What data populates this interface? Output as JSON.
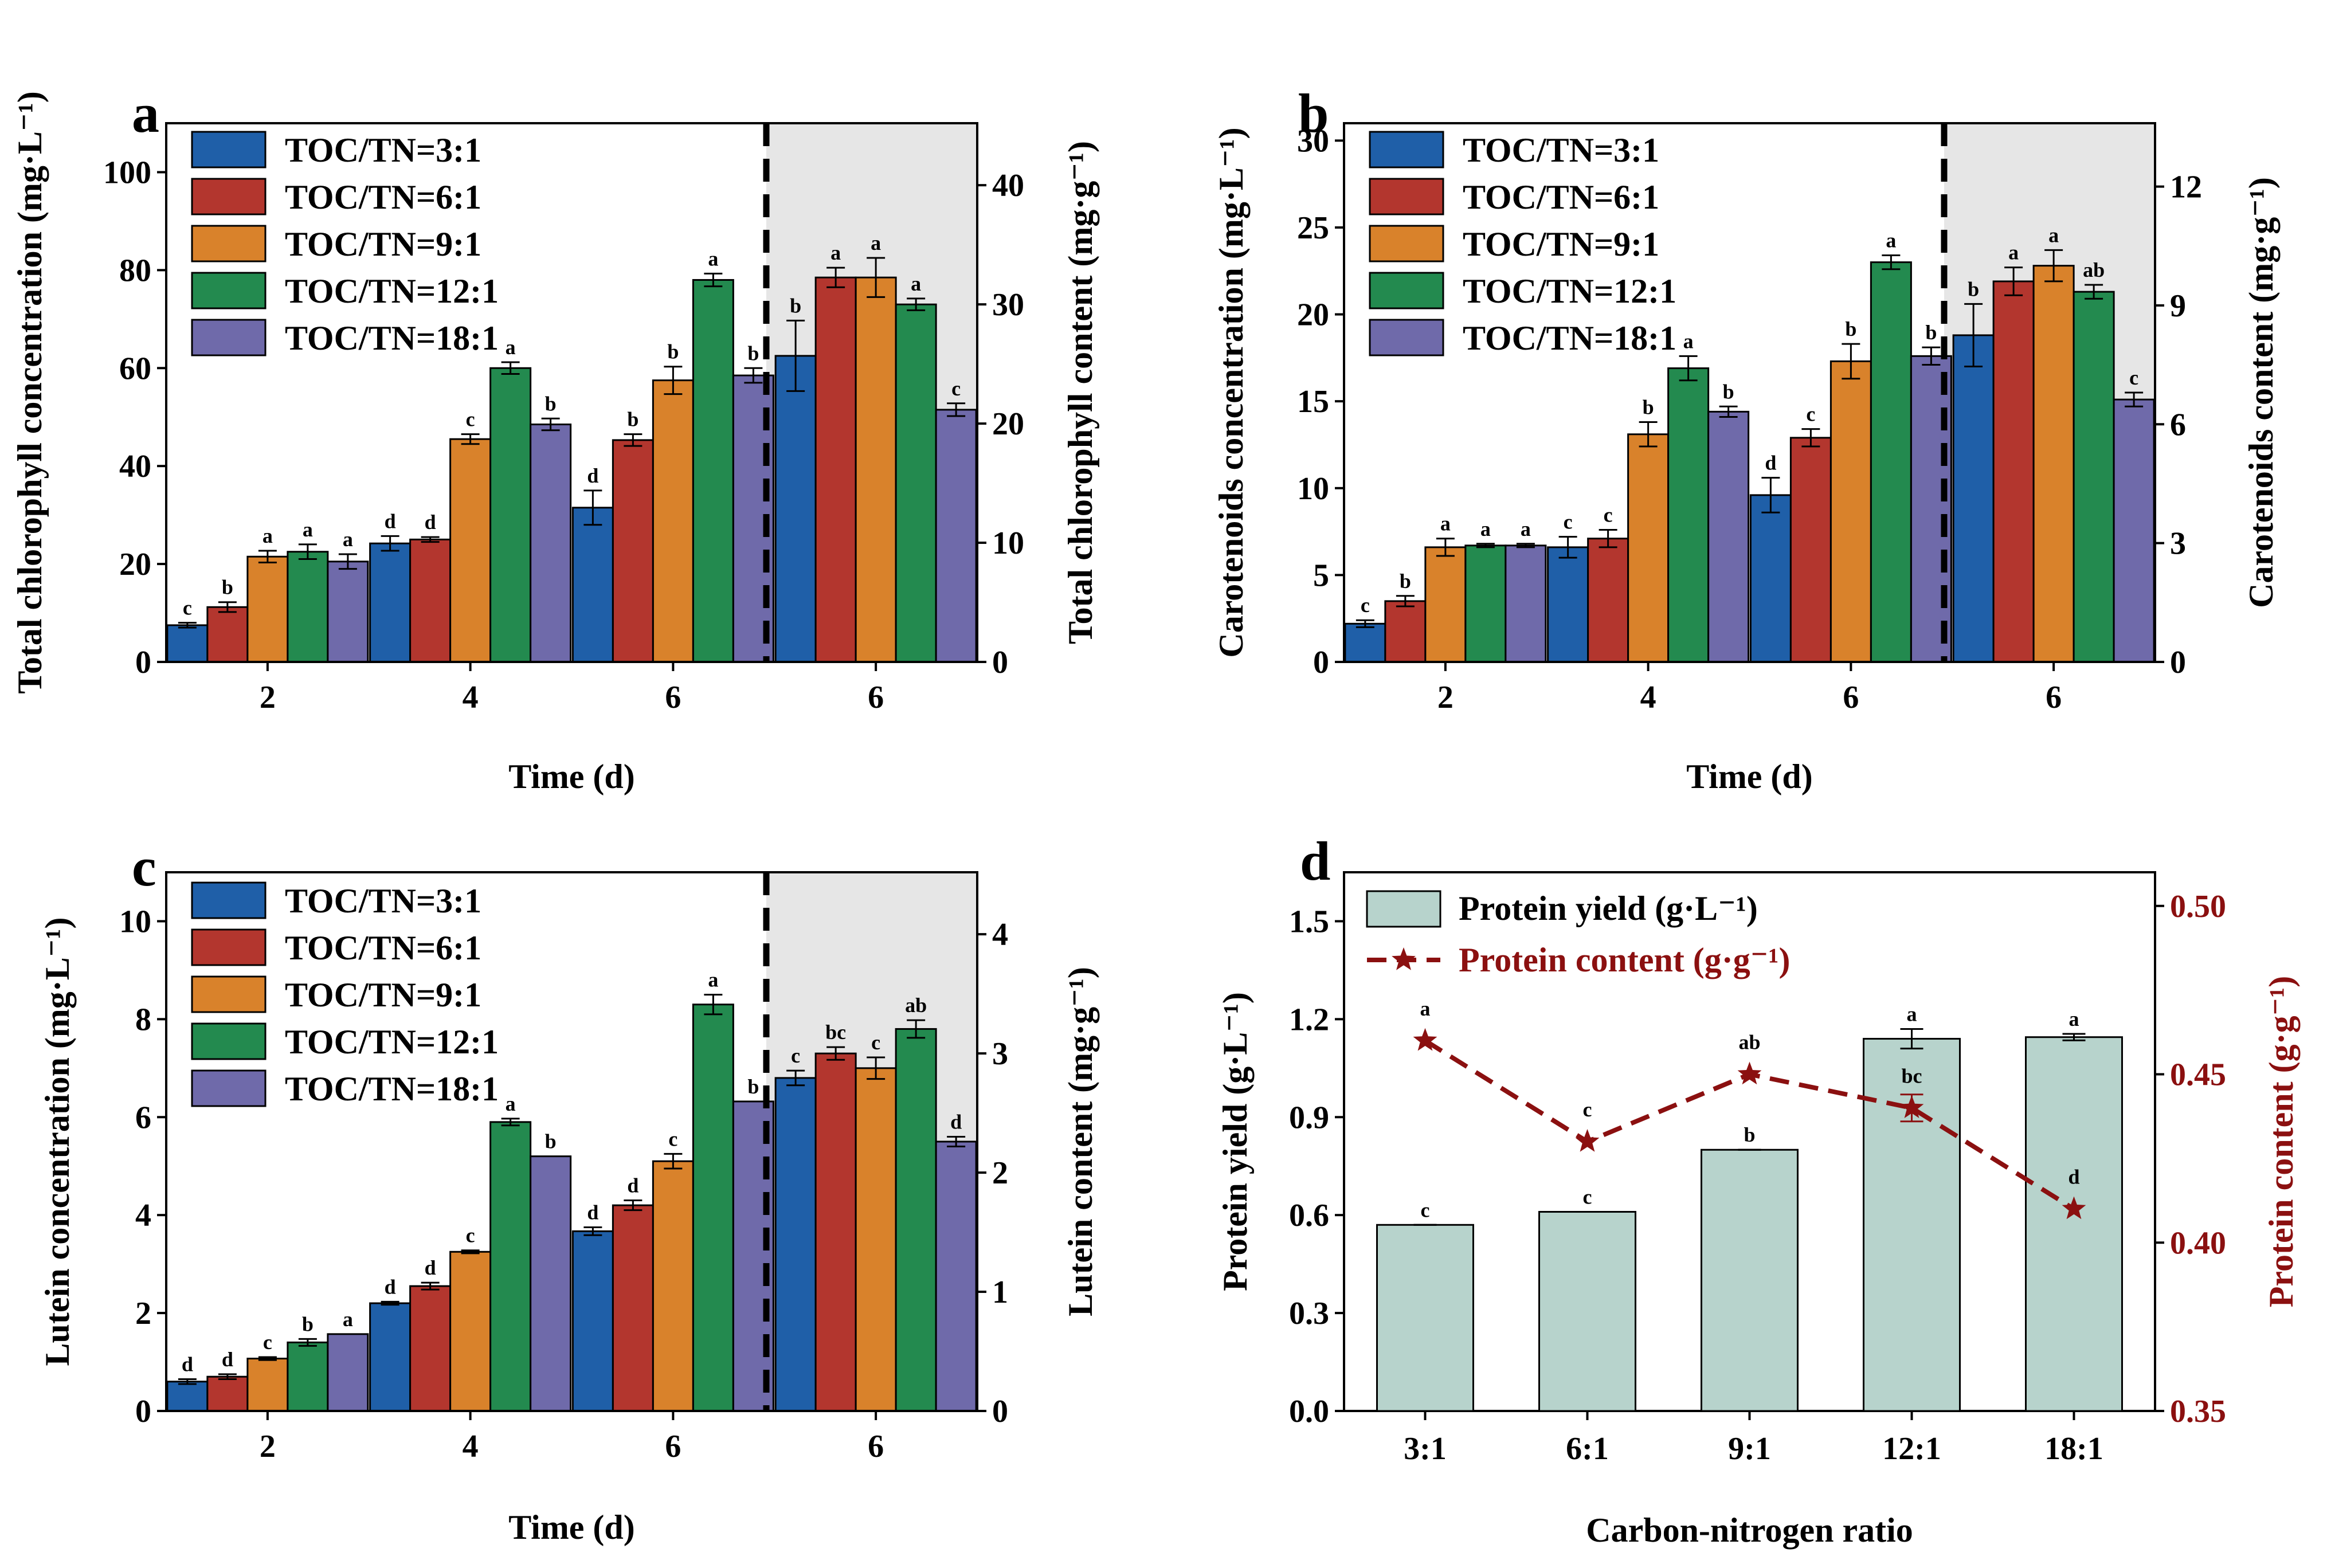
{
  "colors": {
    "series": [
      "#1f5fa8",
      "#b3362e",
      "#d9822b",
      "#238a4f",
      "#6f6aaa"
    ],
    "shade": "#e6e6e6",
    "protein_bar": "#b7d3cc",
    "protein_line": "#8b1010"
  },
  "chart_data": [
    {
      "type": "bar",
      "panel": "a",
      "categories": [
        "2",
        "4",
        "6",
        "6"
      ],
      "shaded_group": 3,
      "xlabel": "Time (d)",
      "ylabel": "Total chlorophyll concentration (mg·L⁻¹)",
      "ylabel_right": "Total chlorophyll content (mg·g⁻¹)",
      "ylim": [
        0,
        110
      ],
      "yticks": [
        "0",
        "20",
        "40",
        "60",
        "80",
        "100"
      ],
      "ylim_right": [
        0,
        45.2
      ],
      "yticks_right": [
        "0",
        "10",
        "20",
        "30",
        "40"
      ],
      "series": [
        {
          "name": "TOC/TN=3:1",
          "values": [
            7.5,
            24.2,
            31.5,
            62.5
          ],
          "errors": [
            0.5,
            1.5,
            3.5,
            7.2
          ],
          "letters": [
            "c",
            "d",
            "d",
            "b"
          ]
        },
        {
          "name": "TOC/TN=6:1",
          "values": [
            11.2,
            25.0,
            45.3,
            78.5
          ],
          "errors": [
            1.0,
            0.5,
            1.2,
            2.0
          ],
          "letters": [
            "b",
            "d",
            "b",
            "a"
          ]
        },
        {
          "name": "TOC/TN=9:1",
          "values": [
            21.5,
            45.5,
            57.5,
            78.5
          ],
          "errors": [
            1.2,
            1.0,
            2.8,
            4.0
          ],
          "letters": [
            "a",
            "c",
            "b",
            "a"
          ]
        },
        {
          "name": "TOC/TN=12:1",
          "values": [
            22.5,
            60.0,
            78.0,
            73.0
          ],
          "errors": [
            1.5,
            1.2,
            1.3,
            1.2
          ],
          "letters": [
            "a",
            "a",
            "a",
            "a"
          ]
        },
        {
          "name": "TOC/TN=18:1",
          "values": [
            20.5,
            48.5,
            58.5,
            51.5
          ],
          "errors": [
            1.5,
            1.2,
            1.5,
            1.3
          ],
          "letters": [
            "a",
            "b",
            "b",
            "c"
          ]
        }
      ]
    },
    {
      "type": "bar",
      "panel": "b",
      "categories": [
        "2",
        "4",
        "6",
        "6"
      ],
      "shaded_group": 3,
      "xlabel": "Time (d)",
      "ylabel": "Carotenoids concentration (mg·L⁻¹)",
      "ylabel_right": "Carotenoids content (mg·g⁻¹)",
      "ylim": [
        0,
        31
      ],
      "yticks": [
        "0",
        "5",
        "10",
        "15",
        "20",
        "25",
        "30"
      ],
      "ylim_right": [
        0,
        13.6
      ],
      "yticks_right": [
        "0",
        "3",
        "6",
        "9",
        "12"
      ],
      "series": [
        {
          "name": "TOC/TN=3:1",
          "values": [
            2.2,
            6.6,
            9.6,
            18.8
          ],
          "errors": [
            0.2,
            0.6,
            1.0,
            1.8
          ],
          "letters": [
            "c",
            "c",
            "d",
            "b"
          ]
        },
        {
          "name": "TOC/TN=6:1",
          "values": [
            3.5,
            7.1,
            12.9,
            21.9
          ],
          "errors": [
            0.3,
            0.5,
            0.5,
            0.8
          ],
          "letters": [
            "b",
            "c",
            "c",
            "a"
          ]
        },
        {
          "name": "TOC/TN=9:1",
          "values": [
            6.6,
            13.1,
            17.3,
            22.8
          ],
          "errors": [
            0.5,
            0.7,
            1.0,
            0.9
          ],
          "letters": [
            "a",
            "b",
            "b",
            "a"
          ]
        },
        {
          "name": "TOC/TN=12:1",
          "values": [
            6.7,
            16.9,
            23.0,
            21.3
          ],
          "errors": [
            0.1,
            0.7,
            0.4,
            0.4
          ],
          "letters": [
            "a",
            "a",
            "a",
            "ab"
          ]
        },
        {
          "name": "TOC/TN=18:1",
          "values": [
            6.7,
            14.4,
            17.6,
            15.1
          ],
          "errors": [
            0.1,
            0.3,
            0.5,
            0.4
          ],
          "letters": [
            "a",
            "b",
            "b",
            "c"
          ]
        }
      ]
    },
    {
      "type": "bar",
      "panel": "c",
      "categories": [
        "2",
        "4",
        "6",
        "6"
      ],
      "shaded_group": 3,
      "xlabel": "Time (d)",
      "ylabel": "Lutein concentration (mg·L⁻¹)",
      "ylabel_right": "Lutein content (mg·g⁻¹)",
      "ylim": [
        0,
        11
      ],
      "yticks": [
        "0",
        "2",
        "4",
        "6",
        "8",
        "10"
      ],
      "ylim_right": [
        0,
        4.52
      ],
      "yticks_right": [
        "0",
        "1",
        "2",
        "3",
        "4"
      ],
      "series": [
        {
          "name": "TOC/TN=3:1",
          "values": [
            0.6,
            2.2,
            3.67,
            6.8
          ],
          "errors": [
            0.05,
            0.03,
            0.08,
            0.15
          ],
          "letters": [
            "d",
            "d",
            "d",
            "c"
          ]
        },
        {
          "name": "TOC/TN=6:1",
          "values": [
            0.7,
            2.55,
            4.2,
            7.3
          ],
          "errors": [
            0.05,
            0.07,
            0.1,
            0.13
          ],
          "letters": [
            "d",
            "d",
            "d",
            "bc"
          ]
        },
        {
          "name": "TOC/TN=9:1",
          "values": [
            1.07,
            3.25,
            5.1,
            7.0
          ],
          "errors": [
            0.03,
            0.03,
            0.15,
            0.22
          ],
          "letters": [
            "c",
            "c",
            "c",
            "c"
          ]
        },
        {
          "name": "TOC/TN=12:1",
          "values": [
            1.4,
            5.9,
            8.3,
            7.8
          ],
          "errors": [
            0.07,
            0.07,
            0.2,
            0.18
          ],
          "letters": [
            "b",
            "a",
            "a",
            "ab"
          ]
        },
        {
          "name": "TOC/TN=18:1",
          "values": [
            1.57,
            5.2,
            6.32,
            5.5
          ],
          "errors": [
            0.0,
            0.0,
            0.0,
            0.1
          ],
          "letters": [
            "a",
            "b",
            "b",
            "d"
          ]
        }
      ]
    },
    {
      "type": "bar+line",
      "panel": "d",
      "categories": [
        "3:1",
        "6:1",
        "9:1",
        "12:1",
        "18:1"
      ],
      "xlabel": "Carbon-nitrogen ratio",
      "ylabel": "Protein yield (g·L⁻¹)",
      "ylabel_right": "Protein content (g·g⁻¹)",
      "ylim": [
        0,
        1.65
      ],
      "yticks": [
        "0.0",
        "0.3",
        "0.6",
        "0.9",
        "1.2",
        "1.5"
      ],
      "ylim_right": [
        0.35,
        0.51
      ],
      "yticks_right": [
        "0.35",
        "0.40",
        "0.45",
        "0.50"
      ],
      "series": [
        {
          "name": "Protein yield (g·L⁻¹)",
          "kind": "bar",
          "values": [
            0.57,
            0.61,
            0.8,
            1.14,
            1.145
          ],
          "errors": [
            0.0,
            0.0,
            0.0,
            0.03,
            0.01
          ],
          "letters": [
            "c",
            "c",
            "b",
            "a",
            "a"
          ]
        },
        {
          "name": "Protein content (g·g⁻¹)",
          "kind": "line",
          "values": [
            0.46,
            0.43,
            0.45,
            0.44,
            0.41
          ],
          "errors": [
            0.0,
            0.0,
            0.0,
            0.004,
            0.0
          ],
          "letters": [
            "a",
            "c",
            "ab",
            "bc",
            "d"
          ]
        }
      ]
    }
  ]
}
